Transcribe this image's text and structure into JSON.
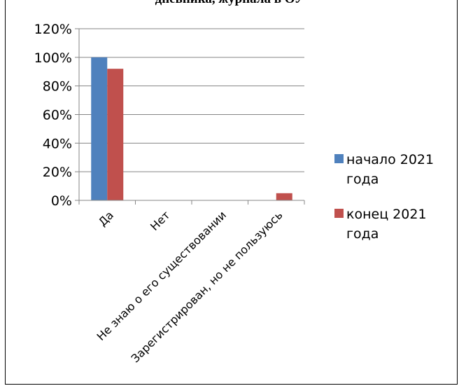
{
  "chart_data": {
    "type": "bar",
    "title": "дневника, журнала в ОУ",
    "categories": [
      "Да",
      "Нет",
      "Не знаю о его существовании",
      "Зарегистрирован, но не пользуюсь"
    ],
    "series": [
      {
        "name": "начало 2021 года",
        "color": "#4F81BD",
        "values": [
          1.0,
          0.0,
          0.0,
          0.0
        ]
      },
      {
        "name": "конец 2021 года",
        "color": "#C0504D",
        "values": [
          0.92,
          0.0,
          0.0,
          0.05
        ]
      }
    ],
    "ylim": [
      0,
      1.2
    ],
    "yticks": [
      "0%",
      "20%",
      "40%",
      "60%",
      "80%",
      "100%",
      "120%"
    ],
    "grid": true,
    "legend_position": "right"
  }
}
